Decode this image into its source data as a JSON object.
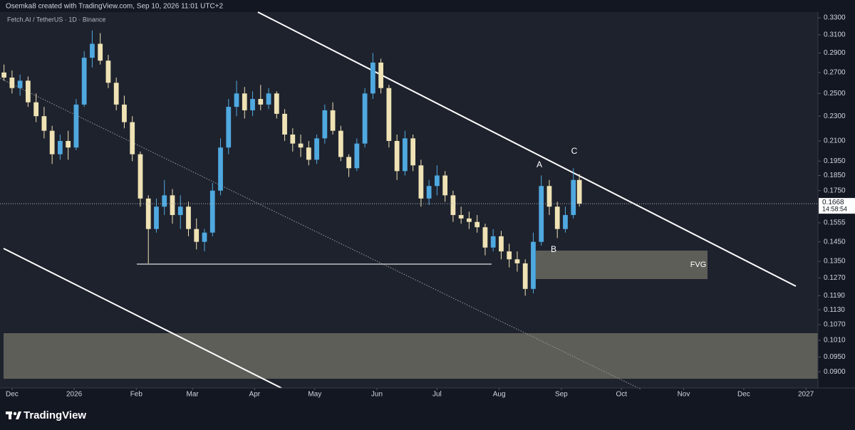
{
  "header": "Osemka8 created with TradingView.com, Sep 10, 2026 11:01 UTC+2",
  "footer": "TradingView",
  "chart_data": {
    "type": "candlestick",
    "title": "Fetch.AI / TetherUS · 1D · Binance",
    "log_scale": true,
    "up_color": "#4fa9e0",
    "down_color": "#efe2b4",
    "x": [
      -4,
      0,
      4,
      8,
      12,
      16,
      20,
      24,
      28,
      32,
      36,
      40,
      44,
      48,
      52,
      56,
      60,
      64,
      68,
      72,
      76,
      80,
      84,
      88,
      92,
      96,
      100,
      104,
      108,
      112,
      116,
      120,
      124,
      128,
      132,
      136,
      140,
      144,
      148,
      152,
      156,
      160,
      164,
      168,
      172,
      176,
      180,
      184,
      188,
      192,
      196,
      200,
      204,
      208,
      212,
      216,
      220,
      224,
      228,
      232,
      236,
      240,
      244,
      248,
      252,
      256,
      260,
      264,
      268,
      272,
      276,
      280,
      283
    ],
    "open": [
      0.27,
      0.265,
      0.255,
      0.262,
      0.242,
      0.23,
      0.218,
      0.2,
      0.21,
      0.205,
      0.24,
      0.285,
      0.3,
      0.282,
      0.26,
      0.24,
      0.225,
      0.2,
      0.17,
      0.152,
      0.165,
      0.172,
      0.16,
      0.165,
      0.152,
      0.145,
      0.15,
      0.175,
      0.205,
      0.238,
      0.25,
      0.235,
      0.245,
      0.24,
      0.25,
      0.232,
      0.215,
      0.208,
      0.205,
      0.196,
      0.212,
      0.235,
      0.218,
      0.198,
      0.19,
      0.208,
      0.25,
      0.28,
      0.255,
      0.21,
      0.188,
      0.212,
      0.192,
      0.17,
      0.178,
      0.185,
      0.172,
      0.16,
      0.158,
      0.156,
      0.153,
      0.142,
      0.148,
      0.14,
      0.136,
      0.134,
      0.122,
      0.145,
      0.178,
      0.165,
      0.152,
      0.16,
      0.182
    ],
    "high": [
      0.278,
      0.272,
      0.268,
      0.266,
      0.25,
      0.238,
      0.222,
      0.215,
      0.218,
      0.245,
      0.292,
      0.315,
      0.312,
      0.288,
      0.265,
      0.248,
      0.23,
      0.202,
      0.172,
      0.17,
      0.182,
      0.176,
      0.172,
      0.168,
      0.158,
      0.152,
      0.18,
      0.212,
      0.245,
      0.262,
      0.256,
      0.252,
      0.258,
      0.255,
      0.252,
      0.236,
      0.22,
      0.215,
      0.21,
      0.215,
      0.24,
      0.242,
      0.222,
      0.2,
      0.212,
      0.255,
      0.29,
      0.284,
      0.258,
      0.215,
      0.218,
      0.215,
      0.196,
      0.182,
      0.192,
      0.188,
      0.175,
      0.165,
      0.162,
      0.16,
      0.155,
      0.152,
      0.151,
      0.144,
      0.14,
      0.136,
      0.15,
      0.185,
      0.182,
      0.168,
      0.165,
      0.19,
      0.186
    ],
    "low": [
      0.262,
      0.25,
      0.248,
      0.238,
      0.225,
      0.212,
      0.193,
      0.196,
      0.196,
      0.203,
      0.238,
      0.275,
      0.278,
      0.255,
      0.235,
      0.22,
      0.195,
      0.165,
      0.134,
      0.15,
      0.16,
      0.155,
      0.152,
      0.148,
      0.141,
      0.14,
      0.148,
      0.172,
      0.2,
      0.23,
      0.228,
      0.23,
      0.235,
      0.236,
      0.228,
      0.21,
      0.202,
      0.198,
      0.192,
      0.193,
      0.208,
      0.215,
      0.195,
      0.184,
      0.188,
      0.205,
      0.245,
      0.25,
      0.205,
      0.182,
      0.185,
      0.188,
      0.165,
      0.166,
      0.172,
      0.168,
      0.156,
      0.155,
      0.152,
      0.15,
      0.138,
      0.14,
      0.136,
      0.132,
      0.13,
      0.119,
      0.12,
      0.143,
      0.16,
      0.147,
      0.15,
      0.158,
      0.165
    ],
    "close": [
      0.265,
      0.255,
      0.262,
      0.242,
      0.23,
      0.218,
      0.2,
      0.21,
      0.205,
      0.24,
      0.285,
      0.3,
      0.282,
      0.26,
      0.24,
      0.225,
      0.2,
      0.17,
      0.152,
      0.165,
      0.172,
      0.16,
      0.165,
      0.152,
      0.145,
      0.15,
      0.175,
      0.205,
      0.238,
      0.25,
      0.235,
      0.245,
      0.24,
      0.25,
      0.232,
      0.215,
      0.208,
      0.205,
      0.196,
      0.212,
      0.235,
      0.218,
      0.198,
      0.19,
      0.208,
      0.25,
      0.28,
      0.255,
      0.21,
      0.188,
      0.212,
      0.192,
      0.17,
      0.178,
      0.185,
      0.172,
      0.16,
      0.158,
      0.156,
      0.153,
      0.142,
      0.148,
      0.14,
      0.136,
      0.134,
      0.122,
      0.145,
      0.178,
      0.165,
      0.152,
      0.16,
      0.182,
      0.1668
    ],
    "last_price": 0.1668,
    "countdown": "14:58:54",
    "xlim": [
      -6,
      402
    ],
    "ylim": [
      0.0848,
      0.337
    ],
    "xticks": [
      {
        "value": 0,
        "label": "Dec"
      },
      {
        "value": 31,
        "label": "2026"
      },
      {
        "value": 62,
        "label": "Feb"
      },
      {
        "value": 90,
        "label": "Mar"
      },
      {
        "value": 121,
        "label": "Apr"
      },
      {
        "value": 151,
        "label": "May"
      },
      {
        "value": 182,
        "label": "Jun"
      },
      {
        "value": 212,
        "label": "Jul"
      },
      {
        "value": 243,
        "label": "Aug"
      },
      {
        "value": 274,
        "label": "Sep"
      },
      {
        "value": 304,
        "label": "Oct"
      },
      {
        "value": 335,
        "label": "Nov"
      },
      {
        "value": 365,
        "label": "Dec"
      },
      {
        "value": 396,
        "label": "2027"
      }
    ],
    "yticks": [
      {
        "value": 0.33,
        "label": "0.3300"
      },
      {
        "value": 0.31,
        "label": "0.3100"
      },
      {
        "value": 0.29,
        "label": "0.2900"
      },
      {
        "value": 0.27,
        "label": "0.2700"
      },
      {
        "value": 0.25,
        "label": "0.2500"
      },
      {
        "value": 0.23,
        "label": "0.2300"
      },
      {
        "value": 0.21,
        "label": "0.2100"
      },
      {
        "value": 0.195,
        "label": "0.1950"
      },
      {
        "value": 0.185,
        "label": "0.1850"
      },
      {
        "value": 0.175,
        "label": "0.1750"
      },
      {
        "value": 0.1555,
        "label": "0.1555"
      },
      {
        "value": 0.145,
        "label": "0.1450"
      },
      {
        "value": 0.135,
        "label": "0.1350"
      },
      {
        "value": 0.127,
        "label": "0.1270"
      },
      {
        "value": 0.119,
        "label": "0.1190"
      },
      {
        "value": 0.113,
        "label": "0.1130"
      },
      {
        "value": 0.107,
        "label": "0.1070"
      },
      {
        "value": 0.101,
        "label": "0.1010"
      },
      {
        "value": 0.095,
        "label": "0.0950"
      },
      {
        "value": 0.09,
        "label": "0.0900"
      }
    ],
    "annotations": [
      "A",
      "B",
      "C",
      "FVG"
    ]
  }
}
